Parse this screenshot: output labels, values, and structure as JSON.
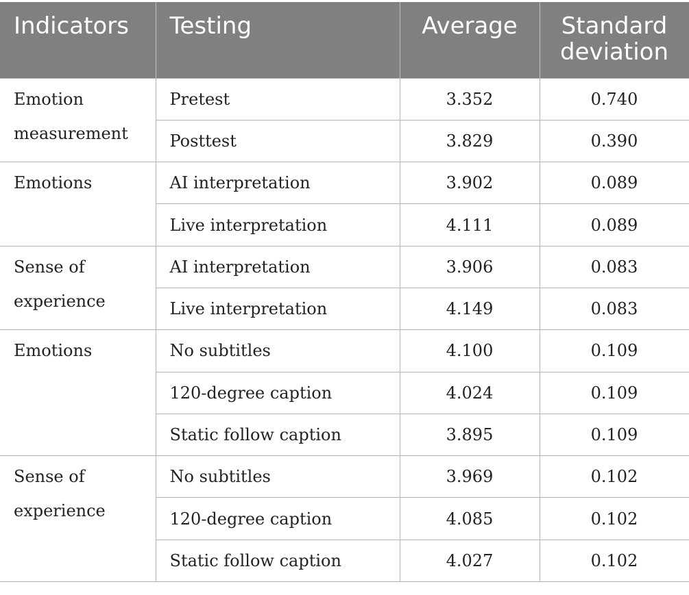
{
  "table": {
    "headers": {
      "indicators": "Indicators",
      "testing": "Testing",
      "average": "Average",
      "std_line1": "Standard",
      "std_line2": "deviation"
    },
    "groups": [
      {
        "indicator": "Emotion measurement",
        "rows": [
          {
            "testing": "Pretest",
            "average": "3.352",
            "sd": "0.740"
          },
          {
            "testing": "Posttest",
            "average": "3.829",
            "sd": "0.390"
          }
        ]
      },
      {
        "indicator": "Emotions",
        "rows": [
          {
            "testing": "AI interpretation",
            "average": "3.902",
            "sd": "0.089"
          },
          {
            "testing": "Live interpretation",
            "average": "4.111",
            "sd": "0.089"
          }
        ]
      },
      {
        "indicator": "Sense of experience",
        "rows": [
          {
            "testing": "AI interpretation",
            "average": "3.906",
            "sd": "0.083"
          },
          {
            "testing": "Live interpretation",
            "average": "4.149",
            "sd": "0.083"
          }
        ]
      },
      {
        "indicator": "Emotions",
        "rows": [
          {
            "testing": "No subtitles",
            "average": "4.100",
            "sd": "0.109"
          },
          {
            "testing": "120-degree caption",
            "average": "4.024",
            "sd": "0.109"
          },
          {
            "testing": "Static follow caption",
            "average": "3.895",
            "sd": "0.109"
          }
        ]
      },
      {
        "indicator": "Sense of experience",
        "rows": [
          {
            "testing": "No subtitles",
            "average": "3.969",
            "sd": "0.102"
          },
          {
            "testing": "120-degree caption",
            "average": "4.085",
            "sd": "0.102"
          },
          {
            "testing": "Static follow caption",
            "average": "4.027",
            "sd": "0.102"
          }
        ]
      }
    ]
  }
}
